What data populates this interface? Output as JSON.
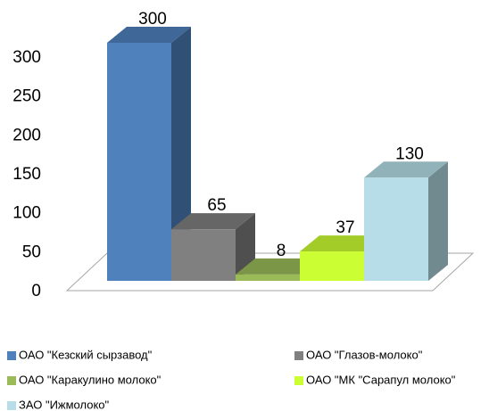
{
  "chart_data": {
    "type": "bar3d",
    "series": [
      {
        "name": "ОАО \"Кезский сырзавод\"",
        "color": "#4f81bd",
        "values": [
          300
        ]
      },
      {
        "name": "ОАО \"Глазов-молоко\"",
        "color": "#808080",
        "values": [
          65
        ]
      },
      {
        "name": "ОАО \"Каракулино молоко\"",
        "color": "#9bbb59",
        "values": [
          8
        ]
      },
      {
        "name": "ОАО \"МК \"Сарапул молоко\"",
        "color": "#ccff33",
        "values": [
          37
        ]
      },
      {
        "name": "ЗАО \"Ижмолоко\"",
        "color": "#b7dee8",
        "values": [
          130
        ]
      }
    ],
    "ylim": [
      0,
      300
    ],
    "yticks": [
      0,
      50,
      100,
      150,
      200,
      250,
      300
    ],
    "legend": "bottom"
  }
}
